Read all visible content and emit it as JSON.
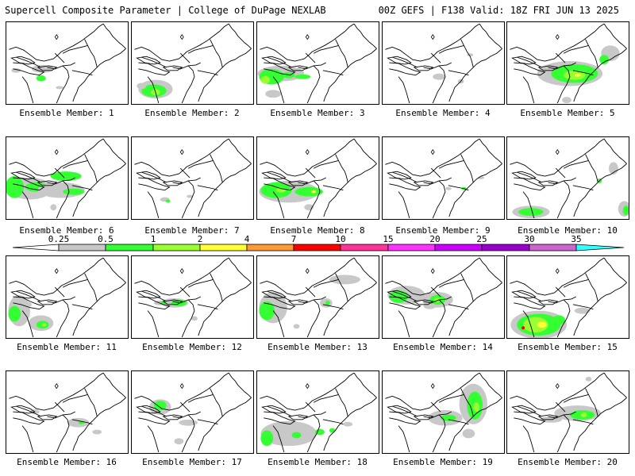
{
  "header": {
    "left": "Supercell Composite Parameter | College of DuPage NEXLAB",
    "right": "00Z GEFS | F138 Valid: 18Z FRI JUN 13 2025"
  },
  "legend": {
    "ticks": [
      "0.25",
      "0.5",
      "1",
      "2",
      "4",
      "7",
      "10",
      "15",
      "20",
      "25",
      "30",
      "35"
    ],
    "colors": [
      "#ffffff",
      "#c8c8c8",
      "#33ff33",
      "#99ff33",
      "#ffff33",
      "#ff9933",
      "#ff0000",
      "#ff3399",
      "#ff33ff",
      "#cc00ff",
      "#9900cc",
      "#cc66cc",
      "#33ffff"
    ]
  },
  "panels": [
    {
      "label": "Ensemble Member: 1",
      "member": 1
    },
    {
      "label": "Ensemble Member: 2",
      "member": 2
    },
    {
      "label": "Ensemble Member: 3",
      "member": 3
    },
    {
      "label": "Ensemble Member: 4",
      "member": 4
    },
    {
      "label": "Ensemble Member: 5",
      "member": 5
    },
    {
      "label": "Ensemble Member: 6",
      "member": 6
    },
    {
      "label": "Ensemble Member: 7",
      "member": 7
    },
    {
      "label": "Ensemble Member: 8",
      "member": 8
    },
    {
      "label": "Ensemble Member: 9",
      "member": 9
    },
    {
      "label": "Ensemble Member: 10",
      "member": 10
    },
    {
      "label": "Ensemble Member: 11",
      "member": 11
    },
    {
      "label": "Ensemble Member: 12",
      "member": 12
    },
    {
      "label": "Ensemble Member: 13",
      "member": 13
    },
    {
      "label": "Ensemble Member: 14",
      "member": 14
    },
    {
      "label": "Ensemble Member: 15",
      "member": 15
    },
    {
      "label": "Ensemble Member: 16",
      "member": 16
    },
    {
      "label": "Ensemble Member: 17",
      "member": 17
    },
    {
      "label": "Ensemble Member: 18",
      "member": 18
    },
    {
      "label": "Ensemble Member: 19",
      "member": 19
    },
    {
      "label": "Ensemble Member: 20",
      "member": 20
    }
  ]
}
